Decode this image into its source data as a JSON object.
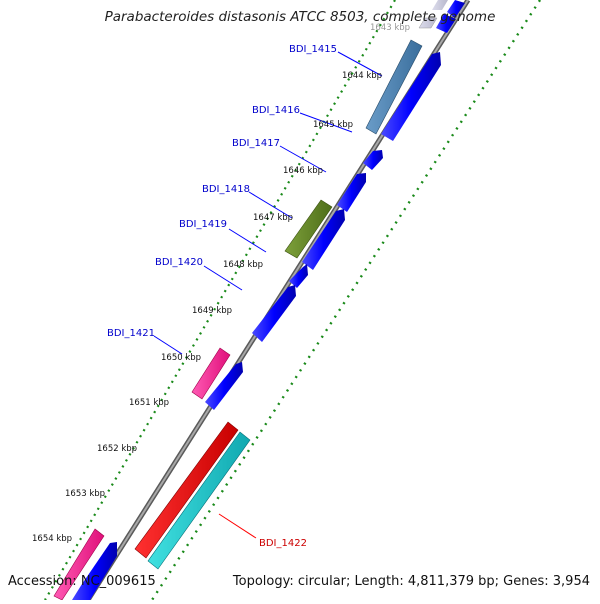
{
  "title": "Parabacteroides distasonis ATCC 8503, complete genome",
  "accession": "Accession: NC_009615",
  "topology": "Topology: circular; Length: 4,811,379 bp; Genes: 3,954",
  "colors": {
    "cds_forward": "#0000ff",
    "cds_reverse": "#0000ff",
    "label_blue": "#0000cc",
    "label_red": "#cc0000",
    "backbone": "#888888",
    "tick_green": "#1a8a1a"
  },
  "position_ticks": [
    {
      "label": "1643 kbp"
    },
    {
      "label": "1644 kbp"
    },
    {
      "label": "1645 kbp"
    },
    {
      "label": "1646 kbp"
    },
    {
      "label": "1647 kbp"
    },
    {
      "label": "1648 kbp"
    },
    {
      "label": "1649 kbp"
    },
    {
      "label": "1650 kbp"
    },
    {
      "label": "1651 kbp"
    },
    {
      "label": "1652 kbp"
    },
    {
      "label": "1653 kbp"
    },
    {
      "label": "1654 kbp"
    }
  ],
  "gene_labels": [
    {
      "name": "BDI_1415",
      "color": "#0000cc"
    },
    {
      "name": "BDI_1416",
      "color": "#0000cc"
    },
    {
      "name": "BDI_1417",
      "color": "#0000cc"
    },
    {
      "name": "BDI_1418",
      "color": "#0000cc"
    },
    {
      "name": "BDI_1419",
      "color": "#0000cc"
    },
    {
      "name": "BDI_1420",
      "color": "#0000cc"
    },
    {
      "name": "BDI_1421",
      "color": "#0000cc"
    },
    {
      "name": "BDI_1422",
      "color": "#cc0000"
    }
  ]
}
